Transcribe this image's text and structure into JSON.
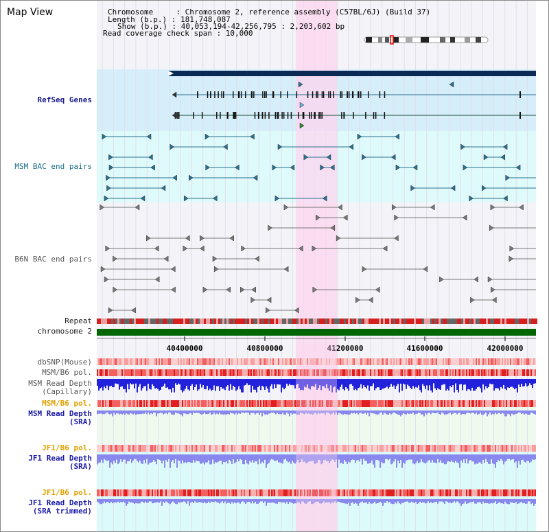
{
  "page_title": "Map View",
  "header": {
    "chromosome_line": "Chromosome     : Chromosome 2, reference assembly (C57BL/6J) (Build 37)",
    "length_line": "Length (b.p.) : 181,748,087",
    "show_line": "Show (b.p.) : 40,053,194-42,256,795 : 2,203,602 bp",
    "coverage_line": "Read coverage check span : 10,000"
  },
  "axis": {
    "ticks": [
      "40400000",
      "40800000",
      "41200000",
      "41600000",
      "42000000"
    ]
  },
  "tracks": {
    "refseq": "RefSeq Genes",
    "msm_bac": "MSM BAC end pairs",
    "b6n_bac": "B6N BAC end pairs",
    "repeat": "Repeat",
    "chromosome": "chromosome 2",
    "dbsnp": "dbSNP(Mouse)",
    "msm_b6_pol": "MSM/B6 pol.",
    "msm_read_depth_cap": "MSM Read Depth\n(Capillary)",
    "msm_b6_pol_2": "MSM/B6 pol.",
    "msm_read_depth_sra": "MSM Read Depth\n(SRA)",
    "jf1_b6_pol": "JF1/B6 pol.",
    "jf1_read_depth_sra": "JF1 Read Depth\n(SRA)",
    "jf1_b6_pol_2": "JF1/B6 pol.",
    "jf1_read_depth_trim": "JF1 Read Depth\n(SRA trimmed)"
  },
  "colors": {
    "highlight": "#fcd6ef",
    "refseq_bg": "#d6eefa",
    "msm_bg": "#dffafa",
    "navy": "#0a2a55",
    "teal": "#2a7090",
    "chrom_green": "#006600",
    "depth_blue": "#2222dd",
    "depth_light": "#8888ee"
  }
}
